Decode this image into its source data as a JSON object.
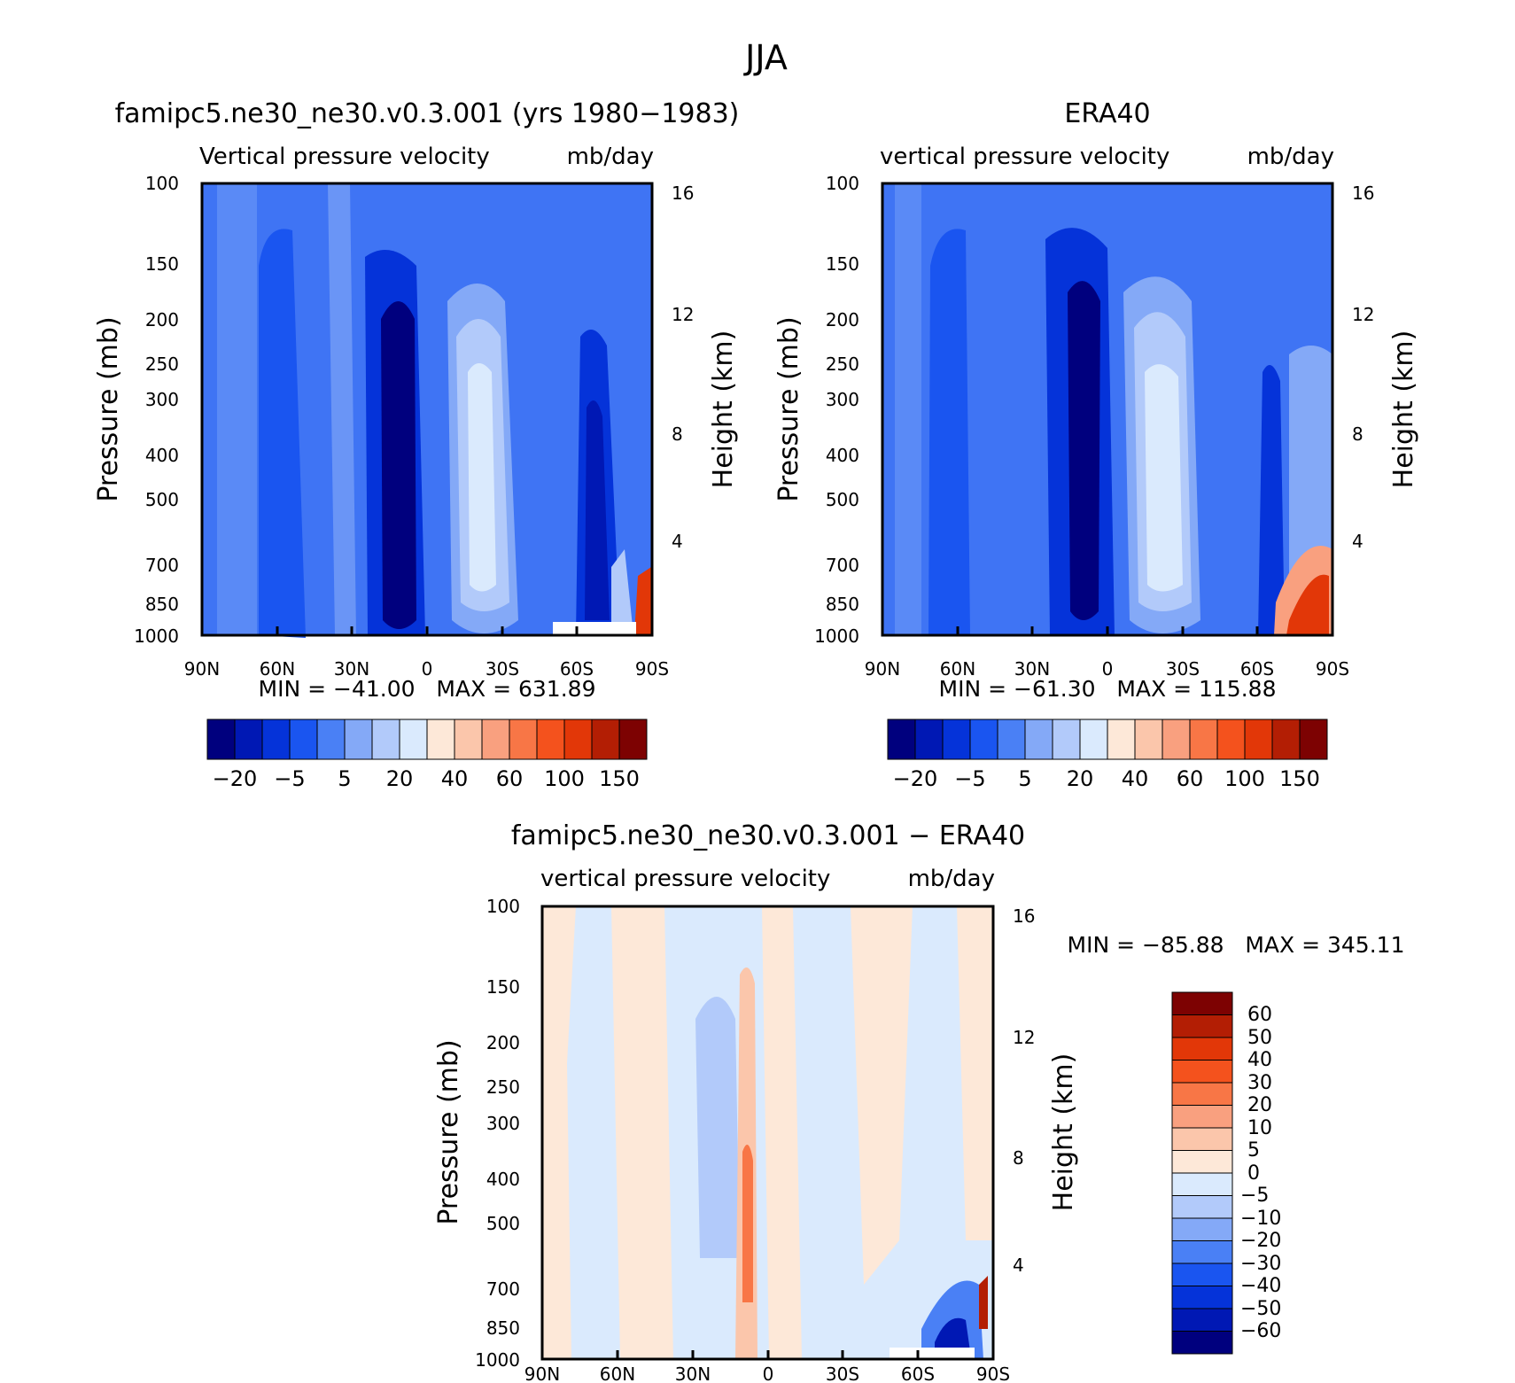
{
  "figure_title": "JJA",
  "chart_data": [
    {
      "type": "heatmap",
      "title": "famipc5.ne30_ne30.v0.3.001 (yrs 1980−1983)",
      "subtitle_left": "Vertical pressure velocity",
      "subtitle_right": "mb/day",
      "ylabel": "Pressure (mb)",
      "ylabel_right": "Height (km)",
      "x_ticks": [
        "90N",
        "60N",
        "30N",
        "0",
        "30S",
        "60S",
        "90S"
      ],
      "y_ticks": [
        "100",
        "150",
        "200",
        "250",
        "300",
        "400",
        "500",
        "700",
        "850",
        "1000"
      ],
      "y_ticks_right": [
        "16",
        "12",
        "8",
        "4"
      ],
      "stats": "MIN = −41.00   MAX = 631.89",
      "colorbar_labels": [
        "−20",
        "−5",
        "5",
        "20",
        "40",
        "60",
        "100",
        "150"
      ],
      "colorbar_colors": [
        "#00007e",
        "#0018b4",
        "#0533d9",
        "#1a55f0",
        "#4a80f5",
        "#84a9f7",
        "#b2cafa",
        "#daeafd",
        "#fde8d8",
        "#fbc6ab",
        "#f9a07f",
        "#f87646",
        "#f4521d",
        "#e23708",
        "#b31e04",
        "#7d0202"
      ]
    },
    {
      "type": "heatmap",
      "title": "ERA40",
      "subtitle_left": "vertical pressure velocity",
      "subtitle_right": "mb/day",
      "ylabel": "Pressure (mb)",
      "ylabel_right": "Height (km)",
      "x_ticks": [
        "90N",
        "60N",
        "30N",
        "0",
        "30S",
        "60S",
        "90S"
      ],
      "y_ticks": [
        "100",
        "150",
        "200",
        "250",
        "300",
        "400",
        "500",
        "700",
        "850",
        "1000"
      ],
      "y_ticks_right": [
        "16",
        "12",
        "8",
        "4"
      ],
      "stats": "MIN = −61.30   MAX = 115.88",
      "colorbar_labels": [
        "−20",
        "−5",
        "5",
        "20",
        "40",
        "60",
        "100",
        "150"
      ],
      "colorbar_colors": [
        "#00007e",
        "#0018b4",
        "#0533d9",
        "#1a55f0",
        "#4a80f5",
        "#84a9f7",
        "#b2cafa",
        "#daeafd",
        "#fde8d8",
        "#fbc6ab",
        "#f9a07f",
        "#f87646",
        "#f4521d",
        "#e23708",
        "#b31e04",
        "#7d0202"
      ]
    },
    {
      "type": "heatmap",
      "title": "famipc5.ne30_ne30.v0.3.001 − ERA40",
      "subtitle_left": "vertical pressure velocity",
      "subtitle_right": "mb/day",
      "ylabel": "Pressure (mb)",
      "ylabel_right": "Height (km)",
      "x_ticks": [
        "90N",
        "60N",
        "30N",
        "0",
        "30S",
        "60S",
        "90S"
      ],
      "y_ticks": [
        "100",
        "150",
        "200",
        "250",
        "300",
        "400",
        "500",
        "700",
        "850",
        "1000"
      ],
      "y_ticks_right": [
        "16",
        "12",
        "8",
        "4"
      ],
      "stats": "MIN = −85.88   MAX = 345.11",
      "colorbar_labels": [
        "60",
        "50",
        "40",
        "30",
        "20",
        "10",
        "5",
        "0",
        "−5",
        "−10",
        "−20",
        "−30",
        "−40",
        "−50",
        "−60"
      ],
      "colorbar_colors": [
        "#7d0202",
        "#b31e04",
        "#e23708",
        "#f4521d",
        "#f87646",
        "#f9a07f",
        "#fbc6ab",
        "#fde8d8",
        "#daeafd",
        "#b2cafa",
        "#84a9f7",
        "#4a80f5",
        "#1a55f0",
        "#0533d9",
        "#0018b4",
        "#00007e"
      ]
    }
  ]
}
